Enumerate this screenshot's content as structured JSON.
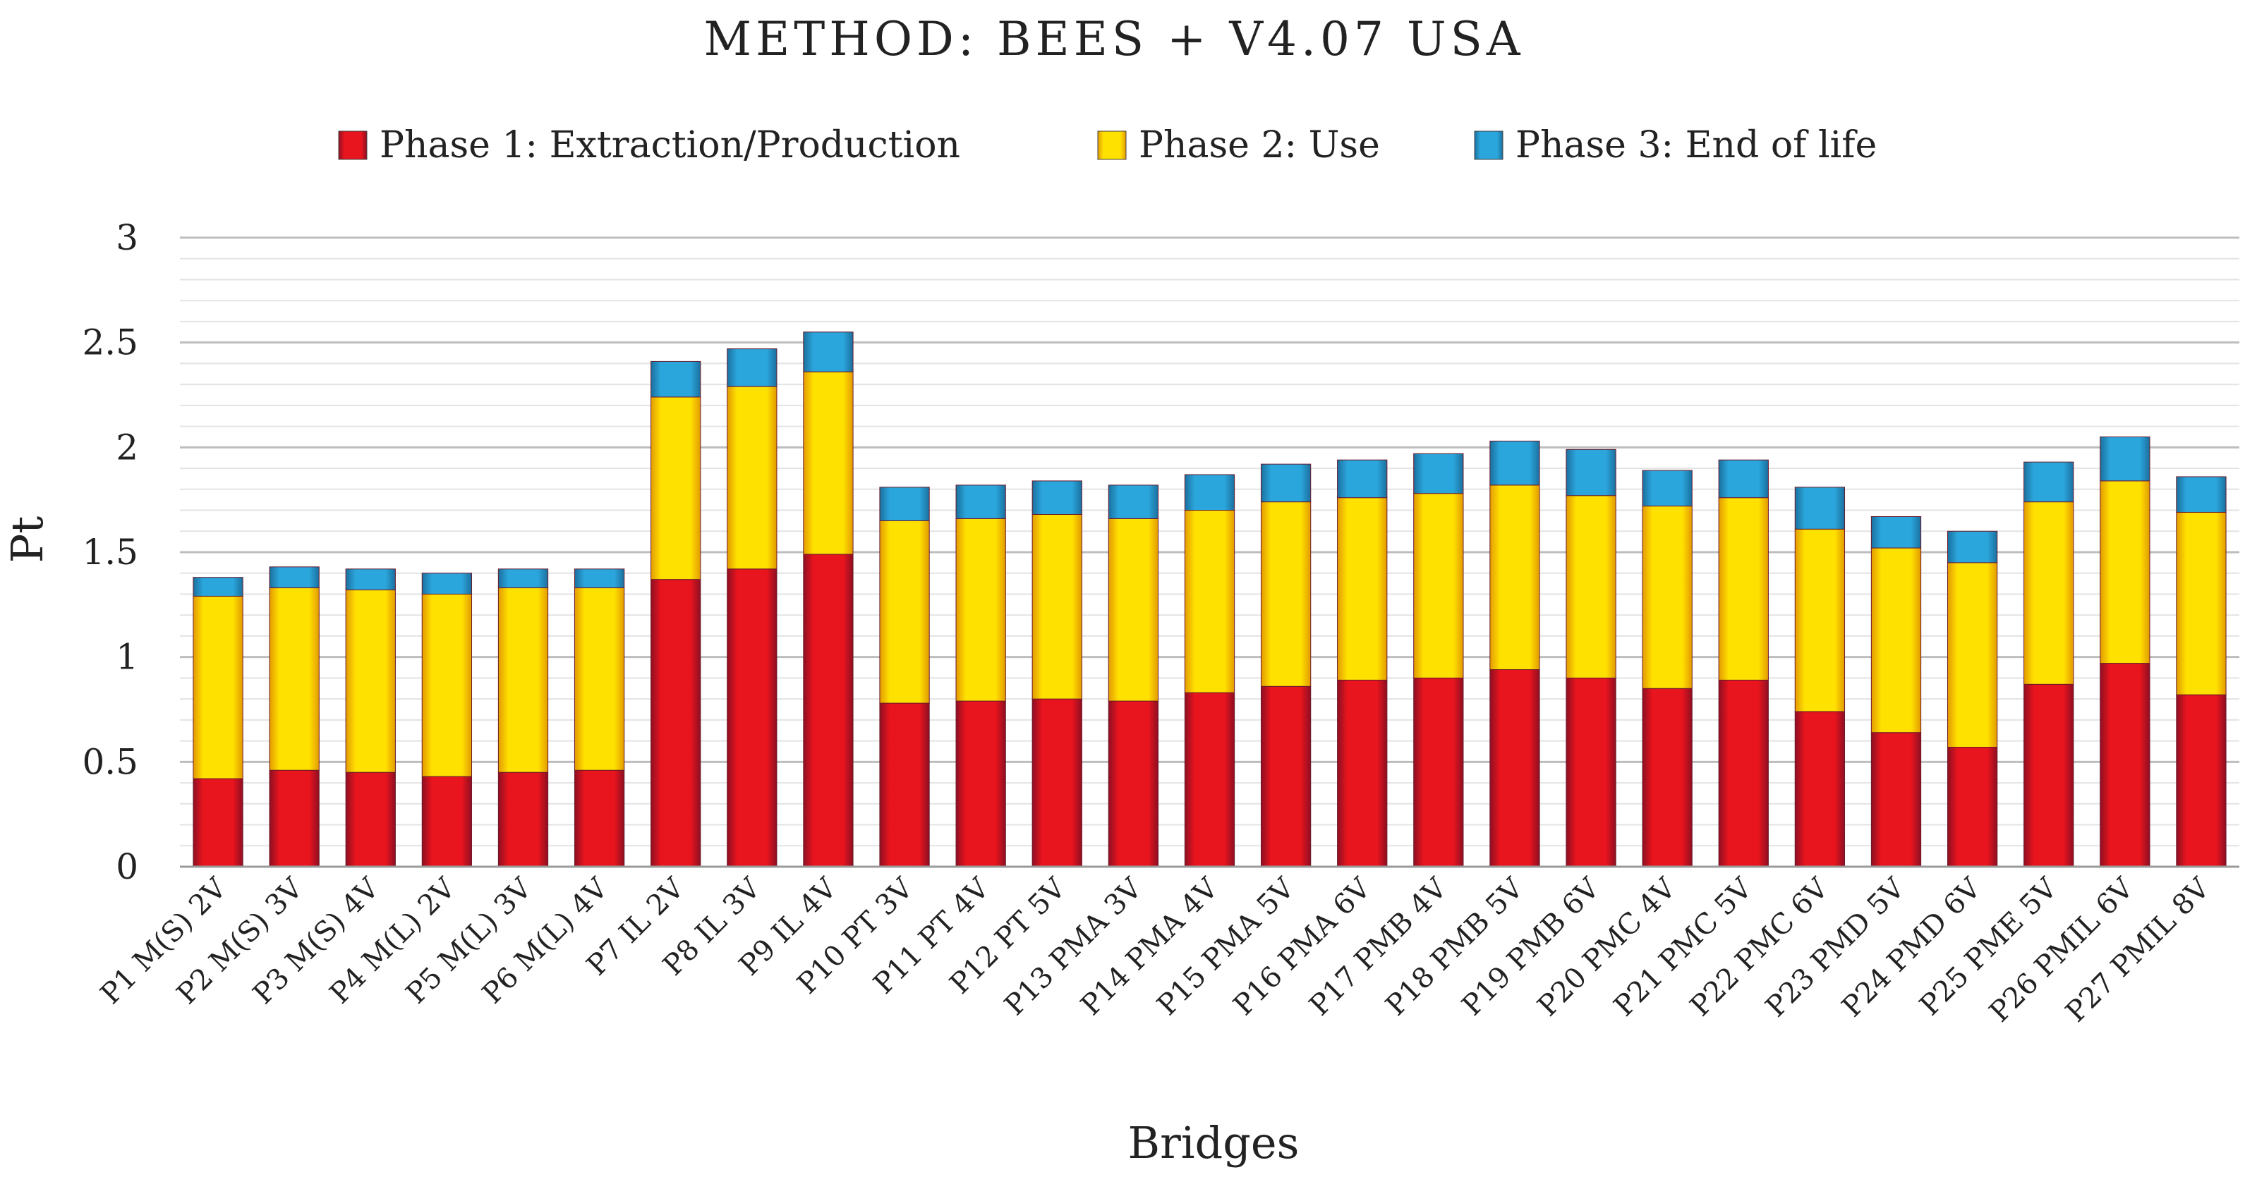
{
  "chart_data": {
    "type": "bar",
    "stacked": true,
    "title": "METHOD: BEES + V4.07 USA",
    "xlabel": "Bridges",
    "ylabel": "Pt",
    "ylim": [
      0,
      3
    ],
    "yticks": [
      0,
      0.5,
      1,
      1.5,
      2,
      2.5,
      3
    ],
    "ytick_labels": [
      "0",
      "0.5",
      "1",
      "1.5",
      "2",
      "2.5",
      "3"
    ],
    "minor_grid_step": 0.1,
    "grid": true,
    "legend_position": "top",
    "categories": [
      "P1 M(S) 2V",
      "P2 M(S) 3V",
      "P3 M(S) 4V",
      "P4 M(L) 2V",
      "P5 M(L) 3V",
      "P6 M(L) 4V",
      "P7 IL 2V",
      "P8 IL 3V",
      "P9 IL 4V",
      "P10 PT 3V",
      "P11 PT 4V",
      "P12 PT 5V",
      "P13 PMA 3V",
      "P14 PMA 4V",
      "P15 PMA 5V",
      "P16 PMA 6V",
      "P17 PMB 4V",
      "P18 PMB 5V",
      "P19 PMB 6V",
      "P20 PMC 4V",
      "P21 PMC 5V",
      "P22 PMC 6V",
      "P23 PMD 5V",
      "P24 PMD 6V",
      "P25 PME 5V",
      "P26 PMIL 6V",
      "P27 PMIL 8V"
    ],
    "series": [
      {
        "name": "Phase 1: Extraction/Production",
        "color": "#e8141e",
        "values": [
          0.42,
          0.46,
          0.45,
          0.43,
          0.45,
          0.46,
          1.37,
          1.42,
          1.49,
          0.78,
          0.79,
          0.8,
          0.79,
          0.83,
          0.86,
          0.89,
          0.9,
          0.94,
          0.9,
          0.85,
          0.89,
          0.74,
          0.64,
          0.57,
          0.87,
          0.97,
          0.82
        ]
      },
      {
        "name": "Phase 2: Use",
        "color": "#ffd400",
        "values": [
          0.87,
          0.87,
          0.87,
          0.87,
          0.88,
          0.87,
          0.87,
          0.87,
          0.87,
          0.87,
          0.87,
          0.88,
          0.87,
          0.87,
          0.88,
          0.87,
          0.88,
          0.88,
          0.87,
          0.87,
          0.87,
          0.87,
          0.88,
          0.88,
          0.87,
          0.87,
          0.87
        ]
      },
      {
        "name": "Phase 3: End of life",
        "color": "#2b9fd6",
        "values": [
          0.09,
          0.1,
          0.1,
          0.1,
          0.09,
          0.09,
          0.17,
          0.18,
          0.19,
          0.16,
          0.16,
          0.16,
          0.16,
          0.17,
          0.18,
          0.18,
          0.19,
          0.21,
          0.22,
          0.17,
          0.18,
          0.2,
          0.15,
          0.15,
          0.19,
          0.21,
          0.17
        ]
      }
    ]
  }
}
